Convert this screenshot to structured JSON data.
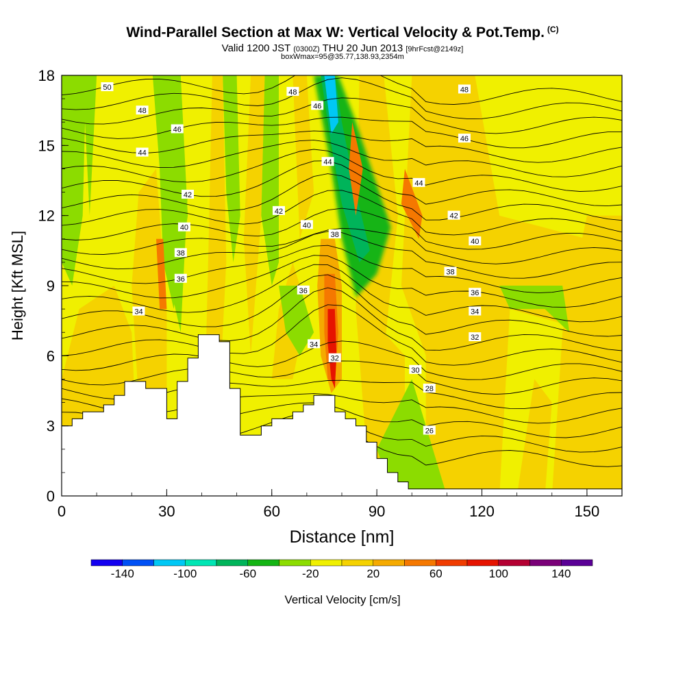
{
  "header": {
    "title": "Wind-Parallel Section at Max W: Vertical Velocity & Pot.Temp.",
    "title_tag": "(C)",
    "valid_prefix": "Valid 1200 JST",
    "valid_utc": "(0300Z)",
    "valid_date": "THU 20 Jun 2013",
    "forecast": "[9hrFcst@2149z]",
    "box_info": "boxWmax=95@35.77,138.93,2354m"
  },
  "chart_data": {
    "type": "heatmap",
    "xlabel": "Distance [nm]",
    "ylabel": "Height [Kft MSL]",
    "xlim": [
      0,
      160
    ],
    "ylim": [
      0,
      18
    ],
    "x_ticks": [
      0,
      30,
      60,
      90,
      120,
      150
    ],
    "y_ticks": [
      0,
      3,
      6,
      9,
      12,
      15,
      18
    ],
    "grid": false,
    "terrain_kft": [
      [
        0,
        3.0
      ],
      [
        3,
        3.0
      ],
      [
        3,
        3.3
      ],
      [
        6,
        3.3
      ],
      [
        6,
        3.6
      ],
      [
        12,
        3.6
      ],
      [
        12,
        3.9
      ],
      [
        15,
        3.9
      ],
      [
        15,
        4.3
      ],
      [
        18,
        4.3
      ],
      [
        18,
        4.9
      ],
      [
        24,
        4.9
      ],
      [
        24,
        4.6
      ],
      [
        30,
        4.6
      ],
      [
        30,
        3.3
      ],
      [
        33,
        3.3
      ],
      [
        33,
        4.9
      ],
      [
        36,
        4.9
      ],
      [
        36,
        5.9
      ],
      [
        39,
        5.9
      ],
      [
        39,
        6.9
      ],
      [
        45,
        6.9
      ],
      [
        45,
        6.6
      ],
      [
        48,
        6.6
      ],
      [
        48,
        4.6
      ],
      [
        51,
        4.6
      ],
      [
        51,
        2.6
      ],
      [
        57,
        2.6
      ],
      [
        57,
        3.0
      ],
      [
        60,
        3.0
      ],
      [
        60,
        3.3
      ],
      [
        66,
        3.3
      ],
      [
        66,
        3.6
      ],
      [
        69,
        3.6
      ],
      [
        69,
        3.9
      ],
      [
        72,
        3.9
      ],
      [
        72,
        4.3
      ],
      [
        78,
        4.3
      ],
      [
        78,
        3.6
      ],
      [
        81,
        3.6
      ],
      [
        81,
        3.3
      ],
      [
        84,
        3.3
      ],
      [
        84,
        3.0
      ],
      [
        87,
        3.0
      ],
      [
        87,
        2.3
      ],
      [
        90,
        2.3
      ],
      [
        90,
        1.6
      ],
      [
        93,
        1.6
      ],
      [
        93,
        1.0
      ],
      [
        96,
        1.0
      ],
      [
        96,
        0.6
      ],
      [
        99,
        0.6
      ],
      [
        99,
        0.3
      ],
      [
        101,
        0.3
      ],
      [
        101,
        0.3
      ],
      [
        160,
        0.3
      ]
    ],
    "colorbar": {
      "label": "Vertical Velocity [cm/s]",
      "tick_labels": [
        "-140",
        "-100",
        "-60",
        "-20",
        "20",
        "60",
        "100",
        "140"
      ],
      "levels": [
        -160,
        -140,
        -120,
        -100,
        -80,
        -60,
        -40,
        -20,
        0,
        20,
        40,
        60,
        80,
        100,
        120,
        140,
        160
      ],
      "colors": [
        "#1400f0",
        "#0050f5",
        "#00c8f5",
        "#00e6b4",
        "#00b45a",
        "#14b414",
        "#8cdc00",
        "#f0f000",
        "#f5d200",
        "#f5aa00",
        "#f57800",
        "#f03c00",
        "#e61400",
        "#b40032",
        "#7a0078",
        "#5a0096"
      ]
    },
    "velocity_regions": [
      {
        "label": "background",
        "value": -10
      },
      {
        "label": "downdraft core near 75 nm, 17 kft",
        "value": -115
      },
      {
        "label": "downdraft band 75-90 nm, 9-16 kft",
        "value": -60
      },
      {
        "label": "updraft core near 77 nm, 6-8 kft",
        "value": 95
      },
      {
        "label": "yellow updraft band 100-125 nm",
        "value": 10
      },
      {
        "label": "yellow updraft band 140-160 nm",
        "value": 10
      },
      {
        "label": "green downdraft band 0-10 nm, 10-18 kft",
        "value": -25
      },
      {
        "label": "green downdraft band near 25-40 nm",
        "value": -25
      }
    ],
    "potential_temperature_labels": [
      {
        "text": "50",
        "x": 13,
        "y": 17.5
      },
      {
        "text": "48",
        "x": 23,
        "y": 16.5
      },
      {
        "text": "46",
        "x": 33,
        "y": 15.7
      },
      {
        "text": "44",
        "x": 23,
        "y": 14.7
      },
      {
        "text": "42",
        "x": 36,
        "y": 12.9
      },
      {
        "text": "40",
        "x": 35,
        "y": 11.5
      },
      {
        "text": "38",
        "x": 34,
        "y": 10.4
      },
      {
        "text": "36",
        "x": 34,
        "y": 9.3
      },
      {
        "text": "34",
        "x": 22,
        "y": 7.9
      },
      {
        "text": "48",
        "x": 66,
        "y": 17.3
      },
      {
        "text": "46",
        "x": 73,
        "y": 16.7
      },
      {
        "text": "44",
        "x": 76,
        "y": 14.3
      },
      {
        "text": "42",
        "x": 62,
        "y": 12.2
      },
      {
        "text": "40",
        "x": 70,
        "y": 11.6
      },
      {
        "text": "38",
        "x": 78,
        "y": 11.2
      },
      {
        "text": "36",
        "x": 69,
        "y": 8.8
      },
      {
        "text": "34",
        "x": 72,
        "y": 6.5
      },
      {
        "text": "32",
        "x": 78,
        "y": 5.9
      },
      {
        "text": "48",
        "x": 115,
        "y": 17.4
      },
      {
        "text": "46",
        "x": 115,
        "y": 15.3
      },
      {
        "text": "44",
        "x": 102,
        "y": 13.4
      },
      {
        "text": "42",
        "x": 112,
        "y": 12.0
      },
      {
        "text": "40",
        "x": 118,
        "y": 10.9
      },
      {
        "text": "38",
        "x": 111,
        "y": 9.6
      },
      {
        "text": "36",
        "x": 118,
        "y": 8.7
      },
      {
        "text": "34",
        "x": 118,
        "y": 7.9
      },
      {
        "text": "32",
        "x": 118,
        "y": 6.8
      },
      {
        "text": "30",
        "x": 101,
        "y": 5.4
      },
      {
        "text": "28",
        "x": 105,
        "y": 4.6
      },
      {
        "text": "26",
        "x": 105,
        "y": 2.8
      }
    ]
  }
}
